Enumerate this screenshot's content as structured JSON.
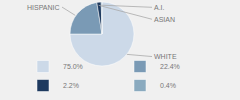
{
  "chart_data": {
    "type": "pie",
    "categories": [
      "WHITE",
      "HISPANIC",
      "ASIAN",
      "A.I."
    ],
    "values": [
      75.0,
      22.4,
      2.2,
      0.4
    ],
    "value_labels": [
      "75.0%",
      "22.4%",
      "2.2%",
      "0.4%"
    ],
    "colors": [
      "#ccd9e8",
      "#7a9ab5",
      "#1e3a5f",
      "#8aaabf"
    ],
    "legend": "bottom"
  }
}
